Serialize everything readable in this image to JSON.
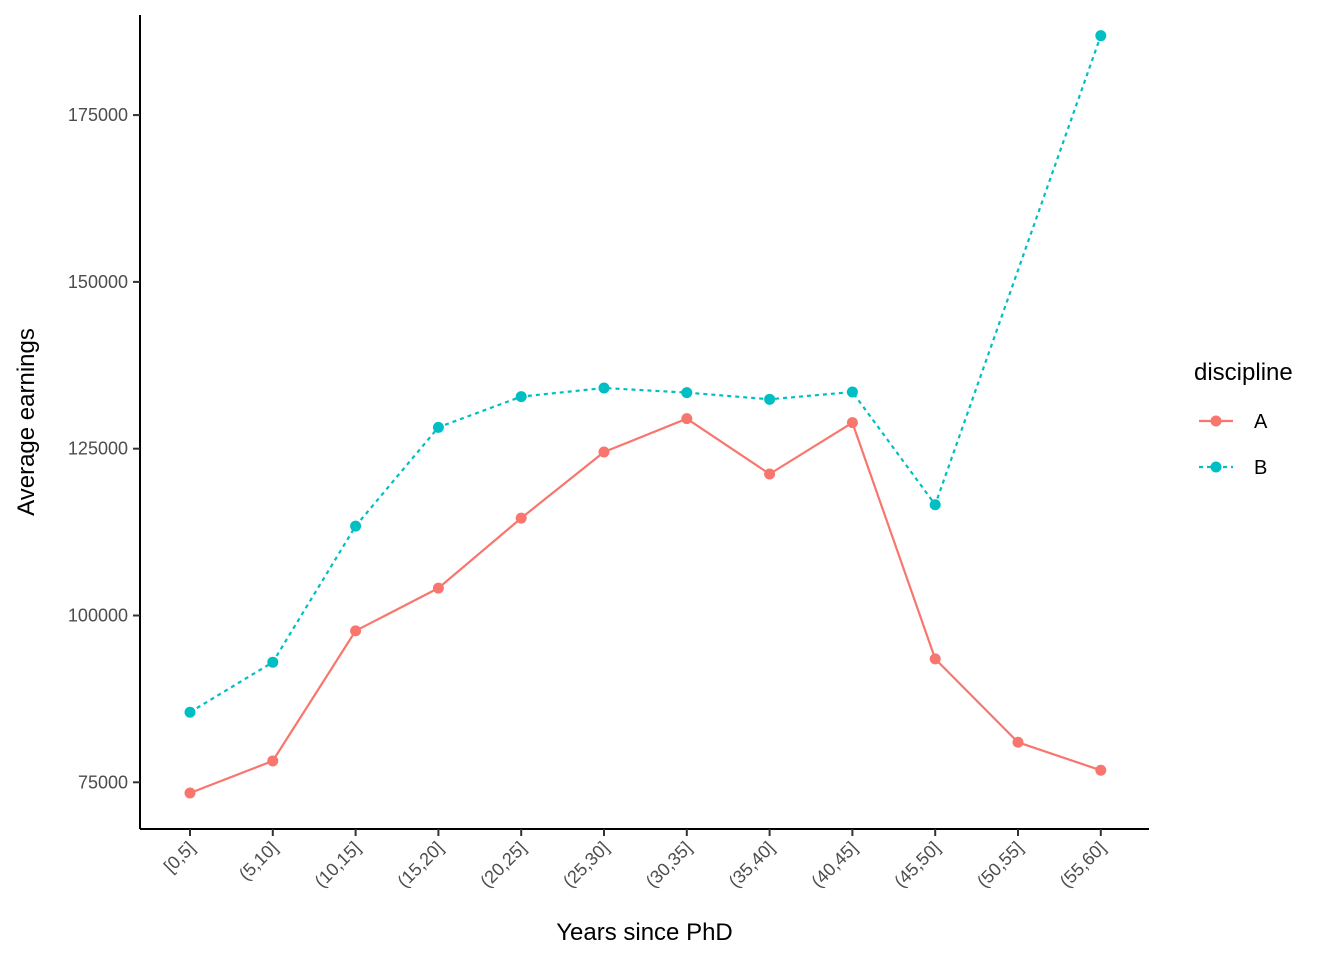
{
  "chart_data": {
    "type": "line",
    "xlabel": "Years since PhD",
    "ylabel": "Average earnings",
    "categories": [
      "[0,5]",
      "(5,10]",
      "(10,15]",
      "(15,20]",
      "(20,25]",
      "(25,30]",
      "(30,35]",
      "(35,40]",
      "(40,45]",
      "(45,50]",
      "(50,55]",
      "(55,60]"
    ],
    "yticks": [
      75000,
      100000,
      125000,
      150000,
      175000
    ],
    "ytick_labels": [
      "75000",
      "100000",
      "125000",
      "150000",
      "175000"
    ],
    "ylim": [
      68000,
      190000
    ],
    "legend": {
      "title": "discipline",
      "position": "right"
    },
    "grid": false,
    "series": [
      {
        "name": "A",
        "color": "#F8766D",
        "line_style": "solid",
        "values": [
          73400,
          78200,
          97700,
          104100,
          114600,
          124500,
          129500,
          121200,
          128900,
          93500,
          81000,
          76800
        ]
      },
      {
        "name": "B",
        "color": "#00BFC4",
        "line_style": "dotted",
        "values": [
          85500,
          93000,
          113400,
          128200,
          132800,
          134100,
          133400,
          132400,
          133500,
          116600,
          null,
          186900
        ]
      }
    ]
  }
}
